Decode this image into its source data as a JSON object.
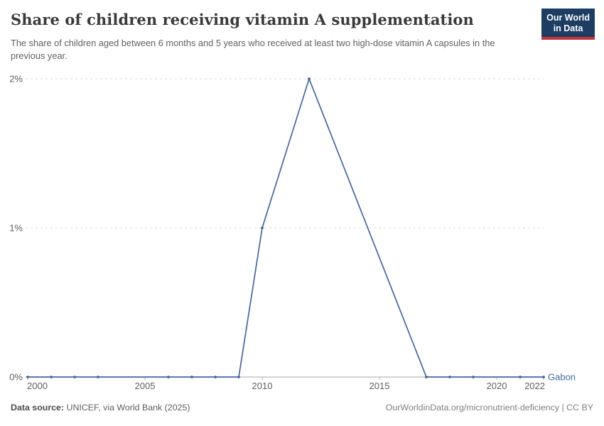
{
  "header": {
    "title": "Share of children receiving vitamin A supplementation",
    "subtitle": "The share of children aged between 6 months and 5 years who received at least two high-dose vitamin A capsules in the previous year.",
    "logo": {
      "line1": "Our World",
      "line2": "in Data",
      "bg_color": "#1d3d63",
      "accent_color": "#c5343a"
    }
  },
  "chart_data": {
    "type": "line",
    "title": "Share of children receiving vitamin A supplementation",
    "xlabel": "",
    "ylabel": "",
    "xlim": [
      2000,
      2022
    ],
    "ylim": [
      0,
      2
    ],
    "grid": "horizontal-dashed",
    "legend_position": "right-end-of-line",
    "x_ticks": [
      2000,
      2005,
      2010,
      2015,
      2020,
      2022
    ],
    "y_ticks": [
      {
        "value": 0,
        "label": "0%"
      },
      {
        "value": 1,
        "label": "1%"
      },
      {
        "value": 2,
        "label": "2%"
      }
    ],
    "series": [
      {
        "name": "Gabon",
        "color": "#4666a0",
        "unit": "%",
        "points": [
          [
            2000,
            0
          ],
          [
            2001,
            0
          ],
          [
            2002,
            0
          ],
          [
            2003,
            0
          ],
          [
            2006,
            0
          ],
          [
            2007,
            0
          ],
          [
            2008,
            0
          ],
          [
            2009,
            0
          ],
          [
            2010,
            1
          ],
          [
            2012,
            2
          ],
          [
            2017,
            0
          ],
          [
            2018,
            0
          ],
          [
            2019,
            0
          ],
          [
            2021,
            0
          ],
          [
            2022,
            0
          ]
        ]
      }
    ]
  },
  "footer": {
    "source_label": "Data source:",
    "source_text": " UNICEF, via World Bank (2025)",
    "right_text": "OurWorldinData.org/micronutrient-deficiency | CC BY"
  }
}
